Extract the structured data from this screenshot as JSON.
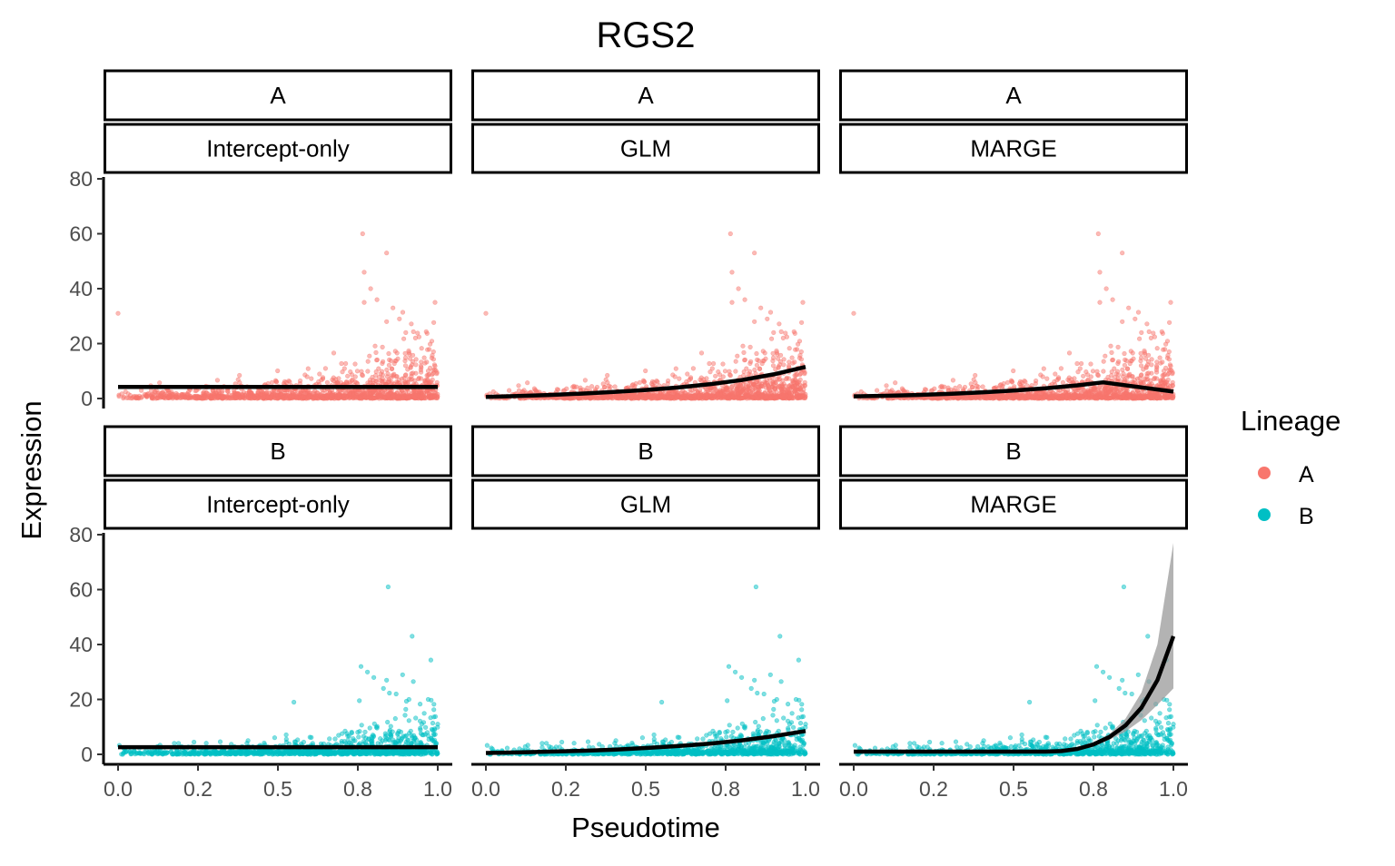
{
  "chart_data": {
    "type": "scatter",
    "title": "RGS2",
    "xlabel": "Pseudotime",
    "ylabel": "Expression",
    "xlim": [
      0,
      1
    ],
    "ylim": [
      0,
      80
    ],
    "x_ticks": [
      0,
      0.25,
      0.5,
      0.75,
      1.0
    ],
    "x_tick_labels": [
      "0.0",
      "0.2",
      "0.5",
      "0.8",
      "1.0"
    ],
    "y_ticks": [
      0,
      20,
      40,
      60,
      80
    ],
    "y_tick_labels": [
      "0",
      "20",
      "40",
      "60",
      "80"
    ],
    "grid": false,
    "legend": {
      "title": "Lineage",
      "position": "right",
      "entries": [
        {
          "label": "A",
          "color": "#F8766D"
        },
        {
          "label": "B",
          "color": "#00BFC4"
        }
      ]
    },
    "fit_color": "#000000",
    "ribbon_color": "#999999",
    "facets": [
      {
        "lineage": "A",
        "model": "Intercept-only",
        "row": 0,
        "col": 0,
        "fit": {
          "x": [
            0,
            1
          ],
          "y": [
            4.2,
            4.2
          ]
        }
      },
      {
        "lineage": "A",
        "model": "GLM",
        "row": 0,
        "col": 1,
        "fit": {
          "x": [
            0,
            0.1,
            0.2,
            0.3,
            0.4,
            0.5,
            0.6,
            0.7,
            0.8,
            0.9,
            1.0
          ],
          "y": [
            0.6,
            0.9,
            1.3,
            1.8,
            2.4,
            3.1,
            4.0,
            5.2,
            6.7,
            8.8,
            11.5
          ]
        }
      },
      {
        "lineage": "A",
        "model": "MARGE",
        "row": 0,
        "col": 2,
        "fit": {
          "x": [
            0,
            0.1,
            0.2,
            0.3,
            0.4,
            0.5,
            0.6,
            0.7,
            0.78,
            1.0
          ],
          "y": [
            0.8,
            1.0,
            1.3,
            1.7,
            2.2,
            2.9,
            3.7,
            4.8,
            5.9,
            2.5
          ]
        }
      },
      {
        "lineage": "B",
        "model": "Intercept-only",
        "row": 1,
        "col": 0,
        "fit": {
          "x": [
            0,
            1
          ],
          "y": [
            2.6,
            2.6
          ]
        }
      },
      {
        "lineage": "B",
        "model": "GLM",
        "row": 1,
        "col": 1,
        "fit": {
          "x": [
            0,
            0.1,
            0.2,
            0.3,
            0.4,
            0.5,
            0.6,
            0.7,
            0.8,
            0.9,
            1.0
          ],
          "y": [
            0.5,
            0.7,
            1.0,
            1.3,
            1.7,
            2.3,
            3.0,
            3.9,
            5.1,
            6.6,
            8.5
          ]
        }
      },
      {
        "lineage": "B",
        "model": "MARGE",
        "row": 1,
        "col": 2,
        "fit": {
          "x": [
            0,
            0.1,
            0.2,
            0.3,
            0.4,
            0.5,
            0.6,
            0.65,
            0.7,
            0.75,
            0.8,
            0.85,
            0.9,
            0.95,
            1.0
          ],
          "y": [
            1.0,
            1.0,
            1.0,
            1.0,
            1.0,
            1.0,
            1.0,
            1.2,
            2.0,
            3.6,
            6.3,
            10.5,
            17.0,
            27.0,
            43.0
          ]
        },
        "ribbon": {
          "x": [
            0.75,
            0.8,
            0.85,
            0.9,
            0.95,
            1.0
          ],
          "lower": [
            3.0,
            5.3,
            8.3,
            12.5,
            18.0,
            24.0
          ],
          "upper": [
            4.3,
            7.4,
            13.0,
            22.5,
            40.0,
            77.0
          ]
        }
      }
    ]
  }
}
